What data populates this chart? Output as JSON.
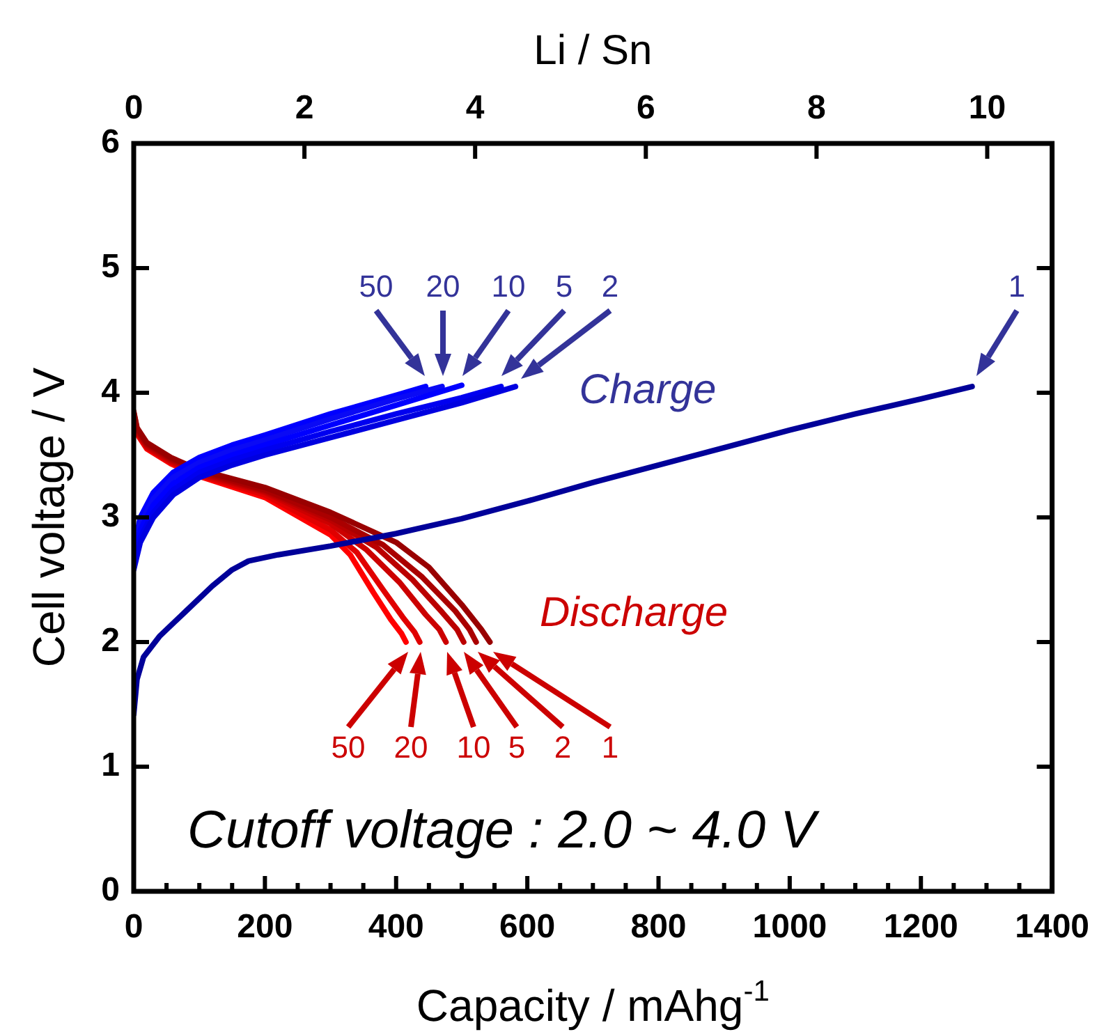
{
  "chart_data": {
    "type": "line",
    "xlabel": "Capacity / mAhg$^{-1}$",
    "ylabel": "Cell voltage / V",
    "x2label": "Li / Sn",
    "xlim": [
      0,
      1400
    ],
    "ylim": [
      0,
      6
    ],
    "x2lim": [
      0,
      10.76
    ],
    "xticks": [
      0,
      {
        "value": 50,
        "label": null
      },
      {
        "value": 100,
        "label": null
      },
      {
        "value": 150,
        "label": null
      },
      200,
      {
        "value": 250,
        "label": null
      },
      {
        "value": 300,
        "label": null
      },
      {
        "value": 350,
        "label": null
      },
      400,
      {
        "value": 450,
        "label": null
      },
      {
        "value": 500,
        "label": null
      },
      {
        "value": 550,
        "label": null
      },
      600,
      {
        "value": 650,
        "label": null
      },
      {
        "value": 700,
        "label": null
      },
      {
        "value": 750,
        "label": null
      },
      800,
      {
        "value": 850,
        "label": null
      },
      {
        "value": 900,
        "label": null
      },
      {
        "value": 950,
        "label": null
      },
      1000,
      {
        "value": 1050,
        "label": null
      },
      {
        "value": 1100,
        "label": null
      },
      {
        "value": 1150,
        "label": null
      },
      1200,
      {
        "value": 1250,
        "label": null
      },
      {
        "value": 1300,
        "label": null
      },
      {
        "value": 1350,
        "label": null
      },
      1400
    ],
    "yticks": [
      0,
      1,
      2,
      3,
      4,
      5,
      6
    ],
    "x2ticks": [
      0,
      2,
      4,
      6,
      8,
      10
    ],
    "grid": false,
    "legend": false,
    "marker": "none",
    "line_style": "solid",
    "series": [
      {
        "color": "#000099",
        "x": [
          0,
          5,
          15,
          40,
          80,
          120,
          150,
          175,
          220,
          300,
          400,
          500,
          600,
          700,
          800,
          900,
          1000,
          1100,
          1200,
          1278
        ],
        "values": [
          1.42,
          1.7,
          1.88,
          2.05,
          2.25,
          2.45,
          2.58,
          2.65,
          2.7,
          2.77,
          2.87,
          2.99,
          3.13,
          3.28,
          3.42,
          3.56,
          3.7,
          3.83,
          3.95,
          4.05
        ]
      },
      {
        "color": "#0000e0",
        "x": [
          0,
          10,
          30,
          60,
          100,
          150,
          200,
          300,
          400,
          500,
          582
        ],
        "values": [
          2.58,
          2.8,
          3.0,
          3.18,
          3.32,
          3.42,
          3.5,
          3.64,
          3.78,
          3.92,
          4.05
        ]
      },
      {
        "color": "#0000f0",
        "x": [
          0,
          10,
          30,
          60,
          100,
          150,
          200,
          300,
          400,
          500,
          560
        ],
        "values": [
          2.62,
          2.84,
          3.04,
          3.22,
          3.36,
          3.46,
          3.54,
          3.69,
          3.83,
          3.96,
          4.05
        ]
      },
      {
        "color": "#0000ff",
        "x": [
          0,
          10,
          30,
          60,
          100,
          150,
          200,
          300,
          400,
          500
        ],
        "values": [
          2.66,
          2.9,
          3.1,
          3.27,
          3.4,
          3.5,
          3.58,
          3.74,
          3.9,
          4.06
        ]
      },
      {
        "color": "#0a0af5",
        "x": [
          0,
          10,
          30,
          60,
          100,
          150,
          200,
          300,
          400,
          470
        ],
        "values": [
          2.7,
          2.95,
          3.15,
          3.32,
          3.44,
          3.54,
          3.62,
          3.79,
          3.95,
          4.05
        ]
      },
      {
        "color": "#0000ff",
        "x": [
          0,
          10,
          30,
          60,
          100,
          150,
          200,
          300,
          400,
          445
        ],
        "values": [
          2.74,
          3.0,
          3.2,
          3.36,
          3.48,
          3.58,
          3.66,
          3.83,
          3.98,
          4.05
        ]
      },
      {
        "color": "#990000",
        "x": [
          0,
          5,
          20,
          57,
          100,
          200,
          300,
          400,
          450,
          500,
          530,
          543
        ],
        "values": [
          3.85,
          3.72,
          3.6,
          3.48,
          3.38,
          3.24,
          3.04,
          2.8,
          2.6,
          2.3,
          2.1,
          2.0
        ]
      },
      {
        "color": "#aa0000",
        "x": [
          0,
          5,
          20,
          57,
          100,
          200,
          300,
          380,
          440,
          490,
          512,
          522
        ],
        "values": [
          3.84,
          3.71,
          3.59,
          3.47,
          3.37,
          3.22,
          3.0,
          2.78,
          2.52,
          2.25,
          2.1,
          2.0
        ]
      },
      {
        "color": "#bb0000",
        "x": [
          0,
          5,
          20,
          57,
          100,
          200,
          300,
          370,
          425,
          470,
          493,
          503
        ],
        "values": [
          3.83,
          3.7,
          3.58,
          3.46,
          3.36,
          3.21,
          2.98,
          2.76,
          2.5,
          2.24,
          2.1,
          2.0
        ]
      },
      {
        "color": "#cc0000",
        "x": [
          0,
          5,
          20,
          57,
          100,
          200,
          300,
          355,
          405,
          445,
          466,
          476
        ],
        "values": [
          3.82,
          3.69,
          3.57,
          3.45,
          3.35,
          3.2,
          2.95,
          2.74,
          2.48,
          2.22,
          2.1,
          2.0
        ]
      },
      {
        "color": "#e00000",
        "x": [
          0,
          5,
          20,
          57,
          100,
          200,
          300,
          340,
          380,
          410,
          428,
          436
        ],
        "values": [
          3.81,
          3.68,
          3.56,
          3.44,
          3.34,
          3.18,
          2.9,
          2.72,
          2.42,
          2.2,
          2.08,
          2.0
        ]
      },
      {
        "color": "#ff0000",
        "x": [
          0,
          5,
          20,
          57,
          100,
          200,
          300,
          330,
          365,
          392,
          408,
          415
        ],
        "values": [
          3.8,
          3.67,
          3.55,
          3.43,
          3.33,
          3.16,
          2.86,
          2.7,
          2.4,
          2.18,
          2.07,
          2.0
        ]
      }
    ],
    "annotations": [
      "50",
      "20",
      "10",
      "5",
      "2",
      "1",
      "50",
      "20",
      "10",
      "5",
      "2",
      "1",
      "Charge",
      "Discharge",
      "Cutoff voltage : 2.0 ~ 4.0 V"
    ]
  }
}
